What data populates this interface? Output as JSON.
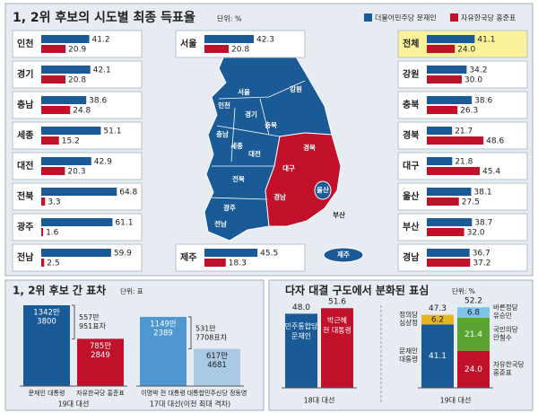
{
  "chart_data": [
    {
      "type": "bar",
      "title": "1, 2위 후보의 시도별 최종 득표율",
      "unit": "단위: %",
      "categories": [
        "인천",
        "경기",
        "충남",
        "세종",
        "대전",
        "전북",
        "광주",
        "전남",
        "서울",
        "제주",
        "전체",
        "강원",
        "충북",
        "경북",
        "대구",
        "울산",
        "부산",
        "경남"
      ],
      "series": [
        {
          "name": "더불어민주당 문재인",
          "color": "#1a5a96",
          "values": [
            41.2,
            42.1,
            38.6,
            51.1,
            42.9,
            64.8,
            61.1,
            59.9,
            42.3,
            45.5,
            41.1,
            34.2,
            38.6,
            21.7,
            21.8,
            38.1,
            38.7,
            36.7
          ]
        },
        {
          "name": "자유한국당 홍준표",
          "color": "#c0102a",
          "values": [
            20.9,
            20.8,
            24.8,
            15.2,
            20.3,
            3.3,
            1.6,
            2.5,
            20.8,
            18.3,
            24,
            30,
            26.3,
            48.6,
            45.4,
            27.5,
            32,
            37.2
          ],
          "value_labels": [
            "20.9",
            "20.8",
            "24.8",
            "15.2",
            "20.3",
            "3.3",
            "1.6",
            "2.5",
            "20.8",
            "18.3",
            "24.0",
            "30.0",
            "26.3",
            "48.6",
            "45.4",
            "27.5",
            "32.0",
            "37.2"
          ]
        }
      ]
    },
    {
      "type": "bar",
      "title": "1, 2위 후보 간 표차",
      "unit": "단위: 표",
      "groups": [
        {
          "name": "19대 대선",
          "difference": [
            "557만",
            "951표차"
          ],
          "bars": [
            {
              "name": "문재인 대통령",
              "color": "#1a5a96",
              "value": 13423800,
              "value_label": [
                "1342만",
                "3800"
              ]
            },
            {
              "name": "자유한국당 홍준표",
              "color": "#c0102a",
              "value": 7852849,
              "value_label": [
                "785만",
                "2849"
              ]
            }
          ]
        },
        {
          "name": "17대 대선(이전 최대 격차)",
          "difference": [
            "531만",
            "7708표차"
          ],
          "bars": [
            {
              "name": "이명박 전 대통령",
              "color": "#4e97cf",
              "value": 11492389,
              "value_label": [
                "1149만",
                "2389"
              ]
            },
            {
              "name": "대통합민주신당 정동영",
              "color": "#a9c9e4",
              "value": 6174681,
              "value_label": [
                "617만",
                "4681"
              ]
            }
          ]
        }
      ]
    },
    {
      "type": "stacked",
      "title": "다자 대결 구도에서 분화된 표심",
      "unit": "단위: %",
      "groups": [
        {
          "name": "18대 대선",
          "bars": [
            {
              "segments": [
                {
                  "name": [
                    "민주통합당",
                    "문재인"
                  ],
                  "color": "#1a5a96",
                  "value": 48,
                  "value_label": "48.0"
                }
              ]
            },
            {
              "segments": [
                {
                  "name": [
                    "박근혜",
                    "전 대통령"
                  ],
                  "color": "#c0102a",
                  "value": 51.6
                }
              ]
            }
          ]
        },
        {
          "name": "19대 대선",
          "bars": [
            {
              "total": 47.3,
              "segments": [
                {
                  "name": [
                    "문재인",
                    "대통령"
                  ],
                  "color": "#1a5a96",
                  "value": 41.1
                },
                {
                  "name": [
                    "정의당",
                    "심상정"
                  ],
                  "color": "#e8b624",
                  "value": 6.2
                }
              ]
            },
            {
              "total": 52.2,
              "segments": [
                {
                  "name": [
                    "자유한국당",
                    "홍준표"
                  ],
                  "color": "#c0102a",
                  "value": 24,
                  "value_label": "24.0"
                },
                {
                  "name": [
                    "국민의당",
                    "안철수"
                  ],
                  "color": "#5aa532",
                  "value": 21.4
                },
                {
                  "name": [
                    "바른정당",
                    "유승민"
                  ],
                  "color": "#7ec3ea",
                  "value": 6.8
                }
              ]
            }
          ]
        }
      ]
    }
  ]
}
